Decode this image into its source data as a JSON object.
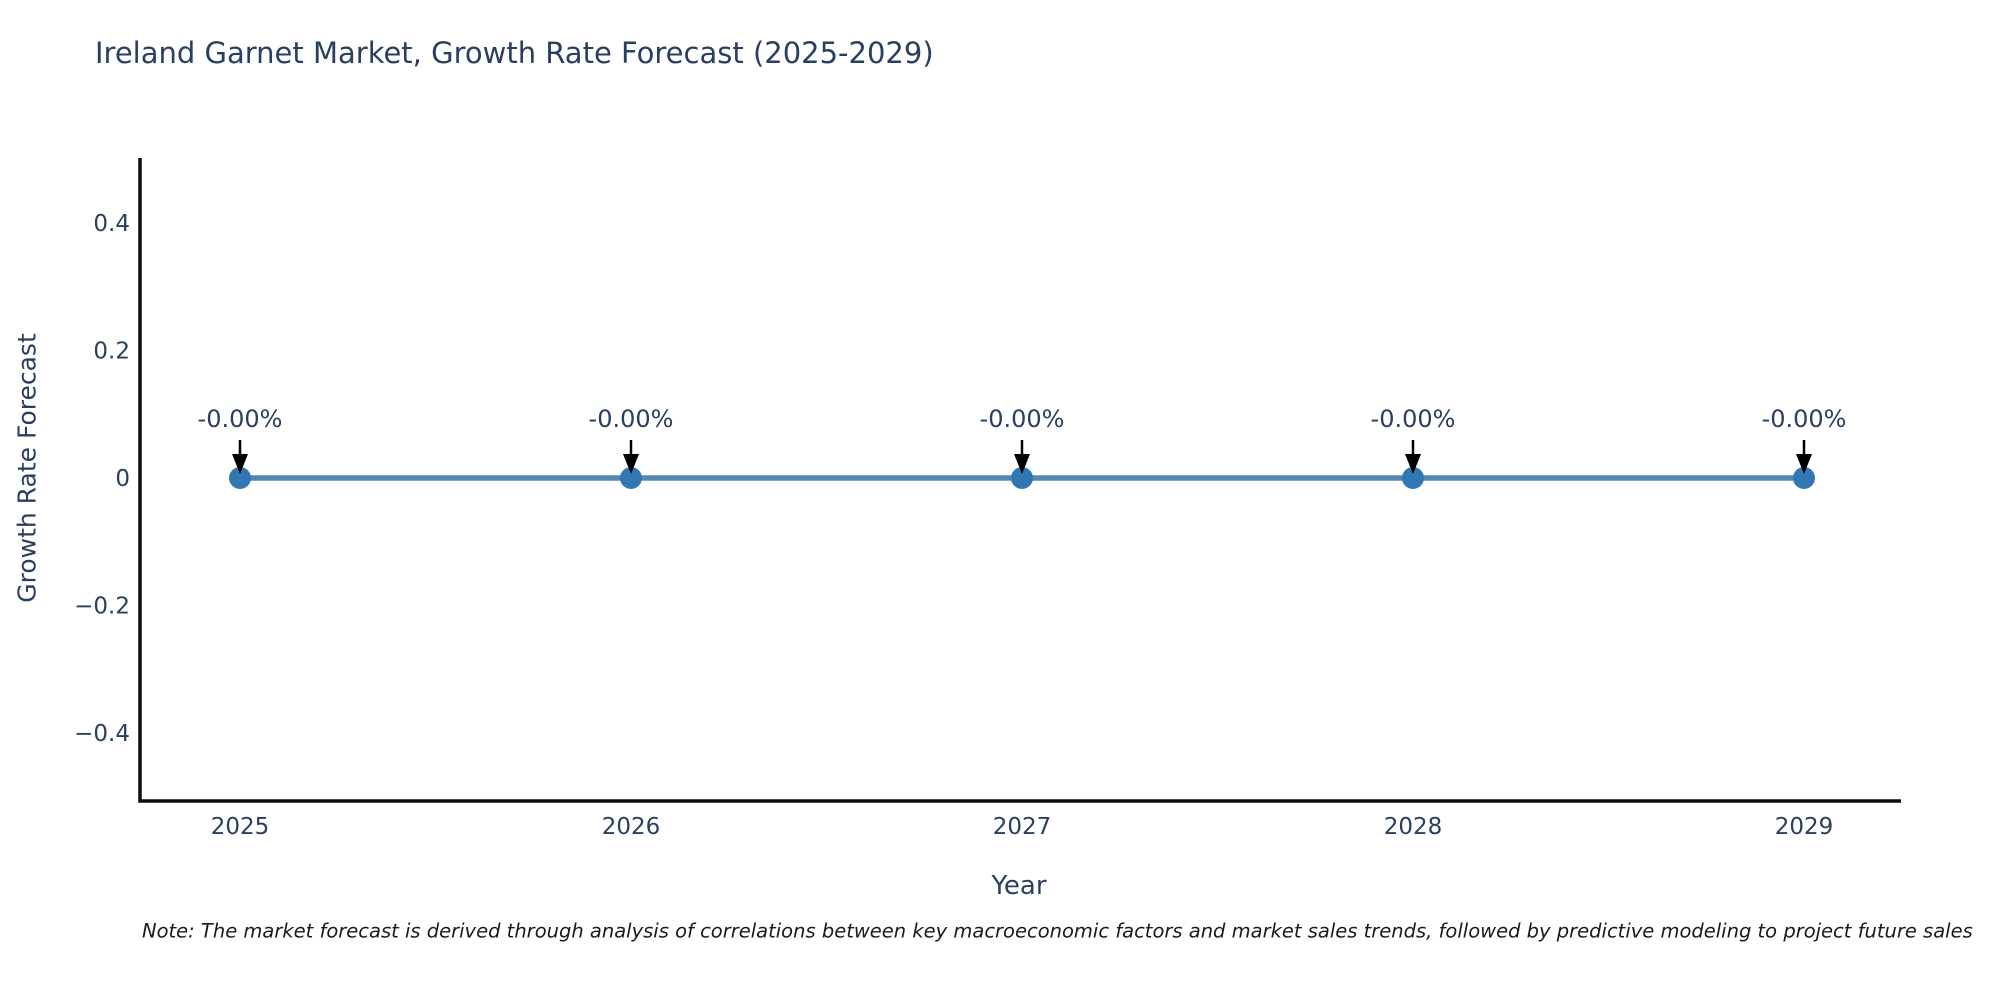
{
  "note": "Note: The market forecast is derived through analysis of correlations between key macroeconomic factors and market sales trends, followed by predictive modeling to project future sales",
  "chart_data": {
    "type": "line",
    "title": "Ireland Garnet Market, Growth Rate Forecast (2025-2029)",
    "xlabel": "Year",
    "ylabel": "Growth Rate Forecast",
    "categories": [
      "2025",
      "2026",
      "2027",
      "2028",
      "2029"
    ],
    "values": [
      0,
      0,
      0,
      0,
      0
    ],
    "point_labels": [
      "-0.00%",
      "-0.00%",
      "-0.00%",
      "-0.00%",
      "-0.00%"
    ],
    "yticks": [
      0.4,
      0.2,
      0,
      -0.2,
      -0.4
    ],
    "ytick_labels": [
      "0.4",
      "0.2",
      "0",
      "−0.2",
      "−0.4"
    ],
    "ylim": [
      -0.5,
      0.5
    ],
    "grid": false,
    "legend": "none",
    "colors": {
      "line": "#5588b0",
      "marker": "#3077b4",
      "axis": "#0d0d0d",
      "text": "#2a3f5f",
      "arrow": "#000000",
      "background": "#ffffff"
    }
  }
}
